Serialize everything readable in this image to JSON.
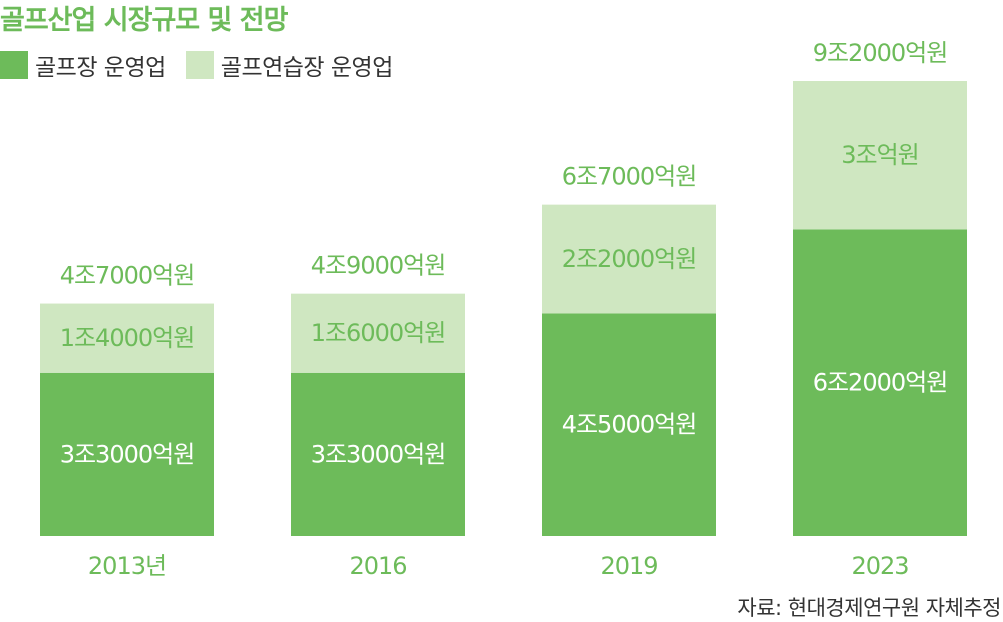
{
  "title": "골프산업 시장규모 및 전망",
  "source": "자료: 현대경제연구원 자체추정",
  "colors": {
    "dark": "#6dbb5a",
    "light": "#cfe7c1",
    "text_white": "#ffffff",
    "text_light": "#6dbb5a"
  },
  "chart_data": {
    "type": "bar",
    "stacked": true,
    "categories": [
      "2013년",
      "2016",
      "2019",
      "2023"
    ],
    "series": [
      {
        "name": "골프장 운영업",
        "values": [
          3.3,
          3.3,
          4.5,
          6.2
        ],
        "labels": [
          "3조3000억원",
          "3조3000억원",
          "4조5000억원",
          "6조2000억원"
        ],
        "color": "#6dbb5a"
      },
      {
        "name": "골프연습장 운영업",
        "values": [
          1.4,
          1.6,
          2.2,
          3.0
        ],
        "labels": [
          "1조4000억원",
          "1조6000억원",
          "2조2000억원",
          "3조억원"
        ],
        "color": "#cfe7c1"
      }
    ],
    "totals": [
      4.7,
      4.9,
      6.7,
      9.2
    ],
    "total_labels": [
      "4조7000억원",
      "4조9000억원",
      "6조7000억원",
      "9조2000억원"
    ],
    "ylim": [
      0,
      9.2
    ],
    "legend": "top-left",
    "grid": false
  }
}
